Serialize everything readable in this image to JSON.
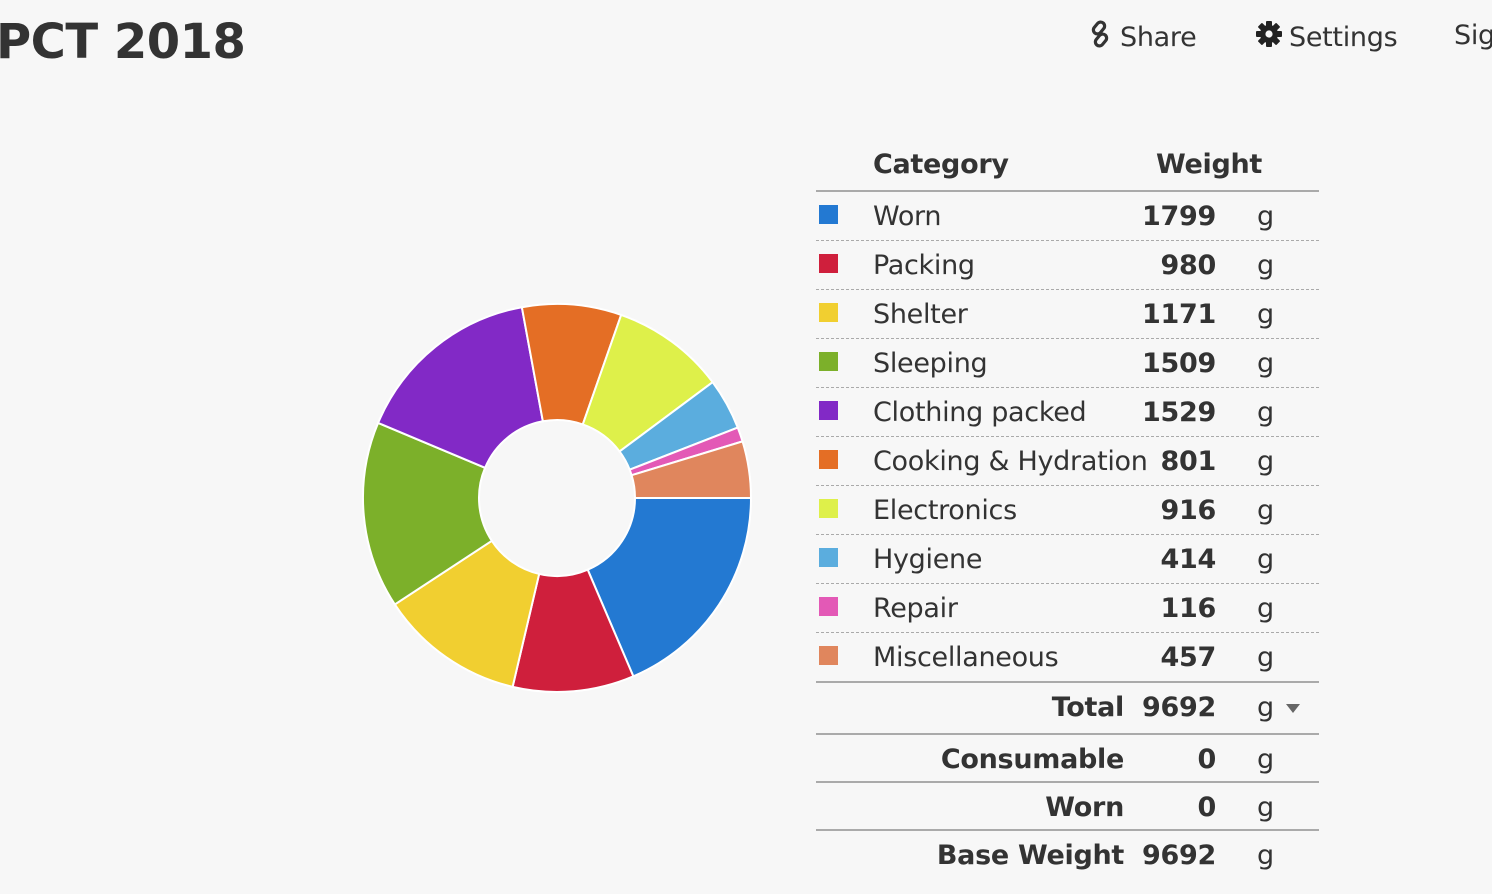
{
  "header": {
    "title": "PCT 2018",
    "share_label": "Share",
    "settings_label": "Settings",
    "signin_label": "Sig"
  },
  "summary": {
    "category_header": "Category",
    "weight_header": "Weight",
    "categories": [
      {
        "name": "Worn",
        "weight": "1799",
        "unit": "g",
        "color": "#2379d2"
      },
      {
        "name": "Packing",
        "weight": "980",
        "unit": "g",
        "color": "#cf1f3c"
      },
      {
        "name": "Shelter",
        "weight": "1171",
        "unit": "g",
        "color": "#f1cf30"
      },
      {
        "name": "Sleeping",
        "weight": "1509",
        "unit": "g",
        "color": "#7cb02a"
      },
      {
        "name": "Clothing packed",
        "weight": "1529",
        "unit": "g",
        "color": "#8229c6"
      },
      {
        "name": "Cooking & Hydration",
        "weight": "801",
        "unit": "g",
        "color": "#e46e25"
      },
      {
        "name": "Electronics",
        "weight": "916",
        "unit": "g",
        "color": "#def04a"
      },
      {
        "name": "Hygiene",
        "weight": "414",
        "unit": "g",
        "color": "#5badde"
      },
      {
        "name": "Repair",
        "weight": "116",
        "unit": "g",
        "color": "#e359b6"
      },
      {
        "name": "Miscellaneous",
        "weight": "457",
        "unit": "g",
        "color": "#e0865d"
      }
    ],
    "total": {
      "label": "Total",
      "value": "9692",
      "unit": "g"
    },
    "consumable": {
      "label": "Consumable",
      "value": "0",
      "unit": "g"
    },
    "worn": {
      "label": "Worn",
      "value": "0",
      "unit": "g"
    },
    "base_weight": {
      "label": "Base Weight",
      "value": "9692",
      "unit": "g"
    }
  },
  "chart_data": {
    "type": "pie",
    "categories": [
      "Worn",
      "Packing",
      "Shelter",
      "Sleeping",
      "Clothing packed",
      "Cooking & Hydration",
      "Electronics",
      "Hygiene",
      "Repair",
      "Miscellaneous"
    ],
    "values": [
      1799,
      980,
      1171,
      1509,
      1529,
      801,
      916,
      414,
      116,
      457
    ],
    "colors": [
      "#2379d2",
      "#cf1f3c",
      "#f1cf30",
      "#7cb02a",
      "#8229c6",
      "#e46e25",
      "#def04a",
      "#5badde",
      "#e359b6",
      "#e0865d"
    ]
  }
}
